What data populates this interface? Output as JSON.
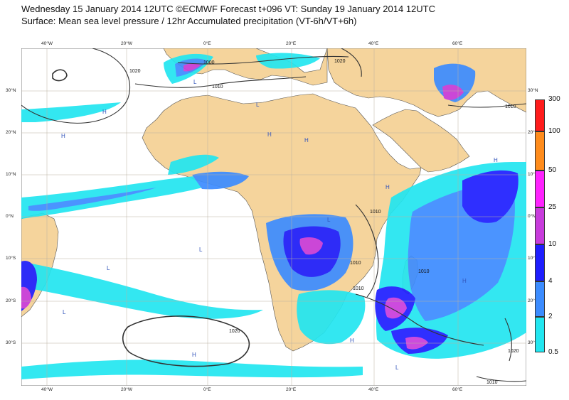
{
  "header": {
    "line1": "Wednesday 15 January 2014 12UTC ©ECMWF Forecast t+096 VT: Sunday 19 January 2014 12UTC",
    "line2": "Surface: Mean sea level pressure / 12hr Accumulated precipitation (VT-6h/VT+6h)"
  },
  "map": {
    "lon_labels_top": [
      "40°W",
      "20°W",
      "0°E",
      "20°E",
      "40°E",
      "60°E"
    ],
    "lon_labels_bottom": [
      "40°W",
      "20°W",
      "0°E",
      "20°E",
      "40°E",
      "60°E"
    ],
    "lat_labels_left": [
      "30°N",
      "20°N",
      "10°N",
      "0°N",
      "10°S",
      "20°S",
      "30°S"
    ],
    "lat_labels_right": [
      "30°N",
      "20°N",
      "10°N",
      "0°N",
      "10°S",
      "20°S",
      "30°S"
    ],
    "isobar_labels": [
      "1020",
      "1010",
      "1000",
      "1010",
      "1020",
      "1020",
      "1010",
      "1010",
      "1010",
      "1010",
      "1020",
      "1010"
    ],
    "pressure_centres": [
      "L",
      "H",
      "H",
      "L",
      "H",
      "H",
      "L",
      "L",
      "L",
      "H",
      "L",
      "H",
      "H",
      "L",
      "H",
      "H"
    ],
    "colors": {
      "ocean": "#ffffff",
      "land": "#f5d49c",
      "gridline": "#b9b0a0",
      "isobar": "#333333"
    }
  },
  "legend": {
    "labels": [
      "300",
      "100",
      "50",
      "25",
      "10",
      "4",
      "2",
      "0.5"
    ],
    "colors": [
      "#ff1c1c",
      "#ff8c1c",
      "#ff22ff",
      "#c83cdc",
      "#1e1eff",
      "#3c8cff",
      "#22e6f0"
    ]
  }
}
